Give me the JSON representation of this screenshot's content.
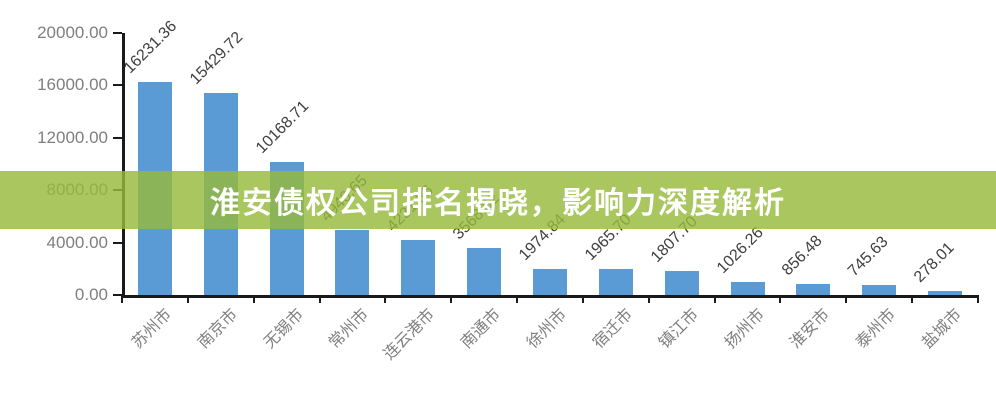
{
  "banner": {
    "text": "淮安债权公司排名揭晓，影响力深度解析",
    "background_color": "#a9c75e",
    "text_color": "#ffffff"
  },
  "chart_data": {
    "type": "bar",
    "title": "",
    "xlabel": "",
    "ylabel": "",
    "categories": [
      "苏州市",
      "南京市",
      "无锡市",
      "常州市",
      "连云港市",
      "南通市",
      "徐州市",
      "宿迁市",
      "镇江市",
      "扬州市",
      "淮安市",
      "泰州市",
      "盐城市"
    ],
    "values": [
      16231.36,
      15429.72,
      10168.71,
      4940.65,
      4231.36,
      3568.62,
      1974.84,
      1965.7,
      1807.7,
      1026.26,
      856.48,
      745.63,
      278.01
    ],
    "data_labels": [
      "16231.36",
      "15429.72",
      "10168.71",
      "4940.65",
      "4231.36",
      "3568.62",
      "1974.84",
      "1965.70",
      "1807.70",
      "1026.26",
      "856.48",
      "745.63",
      "278.01"
    ],
    "y_tick_labels": [
      "20000.00",
      "16000.00",
      "12000.00",
      "8000.00",
      "4000.00",
      "0.00"
    ],
    "ylim": [
      0,
      20000
    ],
    "grid": false,
    "legend": null,
    "bar_color": "#5b9bd5",
    "axis_color": "#1a1a1a",
    "tick_label_color": "#7f7f7f",
    "data_label_color": "#404040"
  }
}
